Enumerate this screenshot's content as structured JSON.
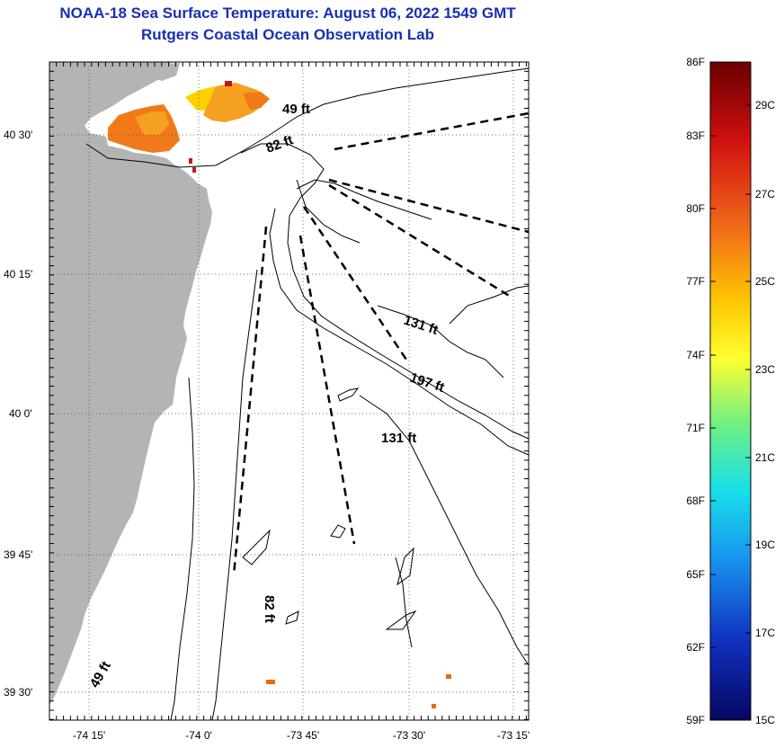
{
  "title": {
    "line1": "NOAA-18 Sea Surface Temperature:  August 06, 2022 1549 GMT",
    "line2": "Rutgers Coastal Ocean Observation Lab"
  },
  "map": {
    "lat_labels": [
      "40 30'",
      "40 15'",
      "40 0'",
      "39 45'",
      "39 30'"
    ],
    "lon_labels": [
      "-74 15'",
      "-74 0'",
      "-73 45'",
      "-73 30'",
      "-73 15'"
    ],
    "depth_labels": [
      "49 ft",
      "82 ft",
      "131 ft",
      "197 ft",
      "131 ft",
      "82 ft",
      "49 ft"
    ],
    "colors": {
      "land": "#b4b4b4",
      "frame": "#000000"
    }
  },
  "colorbar": {
    "f_labels": [
      "86F",
      "83F",
      "80F",
      "77F",
      "74F",
      "71F",
      "68F",
      "65F",
      "62F",
      "59F"
    ],
    "c_labels": [
      "29C",
      "27C",
      "25C",
      "23C",
      "21C",
      "19C",
      "17C",
      "15C"
    ],
    "colors": [
      "#7a0000",
      "#d81010",
      "#f07020",
      "#ffcc00",
      "#ffff30",
      "#80ff80",
      "#20e0e0",
      "#2090ff",
      "#1040d0",
      "#0a0a80"
    ]
  }
}
